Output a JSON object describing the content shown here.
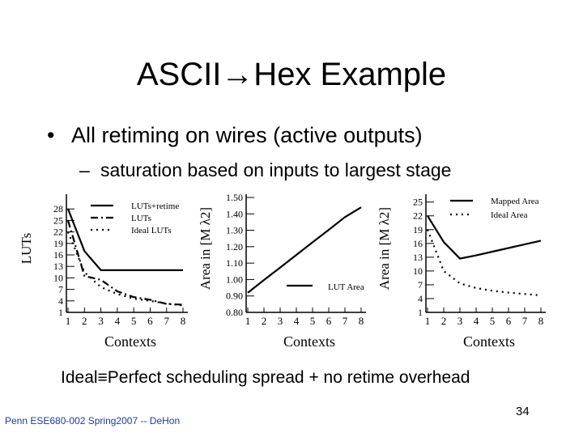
{
  "slide": {
    "title": "ASCII→Hex Example",
    "bullet": "All retiming on wires (active outputs)",
    "subbullet": "saturation based on inputs to largest stage",
    "note": "Ideal≡Perfect scheduling spread + no retime overhead",
    "footer": "Penn ESE680-002 Spring2007 -- DeHon",
    "page_number": "34"
  },
  "chart_data": [
    {
      "type": "line",
      "title": "",
      "xlabel": "Contexts",
      "ylabel": "LUTs",
      "x": [
        1,
        2,
        3,
        4,
        5,
        6,
        7,
        8
      ],
      "yticks": [
        "1",
        "4",
        "7",
        "10",
        "13",
        "16",
        "19",
        "22",
        "25",
        "28"
      ],
      "ylim": [
        1,
        31
      ],
      "series": [
        {
          "name": "LUTs+retime",
          "style": "solid",
          "values": [
            28,
            17,
            12,
            12,
            12,
            12,
            12,
            12
          ]
        },
        {
          "name": "LUTs",
          "style": "dashdot",
          "values": [
            25,
            10.5,
            9.5,
            6.5,
            5,
            4.3,
            3.2,
            3
          ]
        },
        {
          "name": "Ideal LUTs",
          "style": "dotted",
          "values": [
            22,
            11.5,
            7.6,
            5.8,
            4.6,
            4,
            3.3,
            2.8
          ]
        }
      ]
    },
    {
      "type": "line",
      "title": "",
      "xlabel": "Contexts",
      "ylabel": "Area in [M λ2]",
      "x": [
        1,
        2,
        3,
        4,
        5,
        6,
        7,
        8
      ],
      "yticks": [
        "0.80",
        "0.90",
        "1.00",
        "1.10",
        "1.20",
        "1.30",
        "1.40",
        "1.50"
      ],
      "ylim": [
        0.8,
        1.5
      ],
      "series": [
        {
          "name": "LUT Area",
          "style": "solid",
          "values": [
            0.92,
            0.997,
            1.073,
            1.15,
            1.227,
            1.303,
            1.38,
            1.44
          ]
        }
      ]
    },
    {
      "type": "line",
      "title": "",
      "xlabel": "Contexts",
      "ylabel": "Area in [M λ2]",
      "x": [
        1,
        2,
        3,
        4,
        5,
        6,
        7,
        8
      ],
      "yticks": [
        "1",
        "4",
        "7",
        "10",
        "13",
        "16",
        "19",
        "22",
        "25"
      ],
      "ylim": [
        1,
        26
      ],
      "series": [
        {
          "name": "Mapped Area",
          "style": "solid",
          "values": [
            22,
            16.3,
            12.7,
            13.4,
            14.2,
            15,
            15.8,
            16.6
          ]
        },
        {
          "name": "Ideal Area",
          "style": "dotted",
          "values": [
            19,
            10,
            7.3,
            6.3,
            5.7,
            5.3,
            5,
            4.7
          ]
        }
      ]
    }
  ]
}
